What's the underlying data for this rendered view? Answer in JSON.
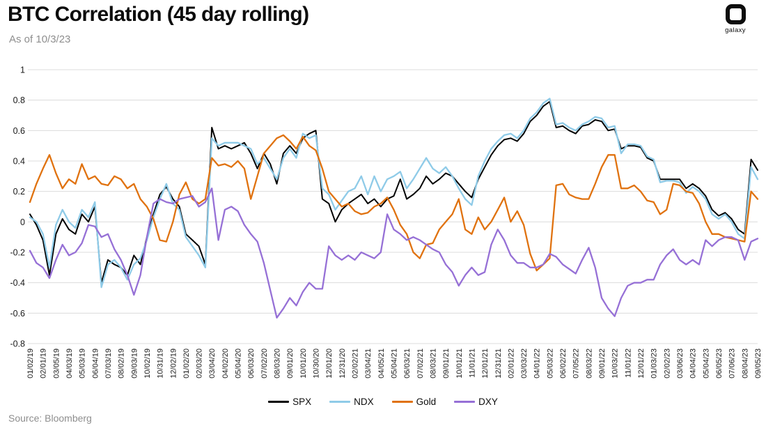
{
  "header": {
    "title": "BTC Correlation (45 day rolling)",
    "subtitle": "As of 10/3/23",
    "logo_text": "galaxy"
  },
  "footer": {
    "source": "Source: Bloomberg"
  },
  "legend": {
    "items": [
      "SPX",
      "NDX",
      "Gold",
      "DXY"
    ]
  },
  "chart_data": {
    "type": "line",
    "title": "BTC Correlation (45 day rolling)",
    "as_of": "10/3/23",
    "ylim": [
      -0.8,
      1
    ],
    "y_ticks": [
      1,
      0.8,
      0.6,
      0.4,
      0.2,
      0,
      -0.2,
      -0.4,
      -0.6,
      -0.8
    ],
    "grid": "horizontal",
    "legend_position": "bottom",
    "points_per_interval": 2,
    "x_tick_labels": [
      "01/02/19",
      "02/01/19",
      "03/05/19",
      "04/03/19",
      "05/03/19",
      "06/04/19",
      "07/03/19",
      "08/02/19",
      "09/03/19",
      "10/02/19",
      "10/31/19",
      "12/02/19",
      "01/02/20",
      "02/03/20",
      "03/04/20",
      "04/02/20",
      "05/04/20",
      "06/03/20",
      "07/02/20",
      "08/03/20",
      "09/01/20",
      "10/01/20",
      "10/30/20",
      "12/01/20",
      "12/31/20",
      "02/02/21",
      "03/04/21",
      "04/05/21",
      "05/04/21",
      "06/03/21",
      "07/02/21",
      "08/03/21",
      "09/01/21",
      "10/01/21",
      "11/01/21",
      "12/01/21",
      "12/31/21",
      "02/01/22",
      "03/03/22",
      "04/01/22",
      "05/03/22",
      "06/02/22",
      "07/05/22",
      "08/03/22",
      "09/01/22",
      "10/03/22",
      "11/01/22",
      "12/01/22",
      "01/03/23",
      "02/02/23",
      "03/06/23",
      "04/04/23",
      "05/04/23",
      "06/05/23",
      "07/06/23",
      "08/04/23",
      "09/05/23"
    ],
    "series": [
      {
        "name": "SPX",
        "color": "#000000",
        "values": [
          0.05,
          -0.02,
          -0.12,
          -0.35,
          -0.08,
          0.02,
          -0.05,
          -0.08,
          0.05,
          0.0,
          0.1,
          -0.4,
          -0.25,
          -0.28,
          -0.3,
          -0.35,
          -0.22,
          -0.28,
          -0.1,
          0.05,
          0.18,
          0.23,
          0.15,
          0.1,
          -0.08,
          -0.12,
          -0.16,
          -0.28,
          0.62,
          0.48,
          0.5,
          0.48,
          0.5,
          0.52,
          0.45,
          0.35,
          0.45,
          0.38,
          0.25,
          0.45,
          0.5,
          0.45,
          0.55,
          0.58,
          0.6,
          0.15,
          0.12,
          0.0,
          0.08,
          0.12,
          0.15,
          0.18,
          0.12,
          0.15,
          0.1,
          0.15,
          0.17,
          0.28,
          0.15,
          0.18,
          0.22,
          0.3,
          0.25,
          0.28,
          0.32,
          0.3,
          0.25,
          0.2,
          0.16,
          0.28,
          0.36,
          0.44,
          0.5,
          0.54,
          0.55,
          0.53,
          0.58,
          0.66,
          0.7,
          0.76,
          0.79,
          0.62,
          0.63,
          0.6,
          0.58,
          0.63,
          0.64,
          0.67,
          0.66,
          0.6,
          0.61,
          0.48,
          0.5,
          0.5,
          0.49,
          0.42,
          0.4,
          0.28,
          0.28,
          0.28,
          0.28,
          0.22,
          0.25,
          0.22,
          0.17,
          0.08,
          0.04,
          0.06,
          0.02,
          -0.05,
          -0.08,
          0.41,
          0.34
        ]
      },
      {
        "name": "NDX",
        "color": "#8fcbe8",
        "values": [
          0.03,
          0.0,
          -0.08,
          -0.3,
          -0.02,
          0.08,
          0.0,
          -0.04,
          0.08,
          0.03,
          0.13,
          -0.43,
          -0.28,
          -0.25,
          -0.3,
          -0.38,
          -0.28,
          -0.24,
          -0.12,
          0.03,
          0.15,
          0.25,
          0.12,
          0.08,
          -0.1,
          -0.16,
          -0.22,
          -0.3,
          0.55,
          0.5,
          0.52,
          0.52,
          0.52,
          0.5,
          0.48,
          0.38,
          0.42,
          0.35,
          0.28,
          0.42,
          0.48,
          0.42,
          0.58,
          0.55,
          0.57,
          0.22,
          0.18,
          0.08,
          0.14,
          0.2,
          0.22,
          0.3,
          0.18,
          0.3,
          0.2,
          0.28,
          0.3,
          0.33,
          0.22,
          0.28,
          0.35,
          0.42,
          0.35,
          0.32,
          0.36,
          0.3,
          0.22,
          0.15,
          0.11,
          0.3,
          0.4,
          0.48,
          0.53,
          0.57,
          0.58,
          0.55,
          0.6,
          0.68,
          0.72,
          0.78,
          0.81,
          0.64,
          0.65,
          0.62,
          0.6,
          0.64,
          0.66,
          0.69,
          0.68,
          0.62,
          0.63,
          0.45,
          0.51,
          0.51,
          0.5,
          0.43,
          0.41,
          0.26,
          0.27,
          0.27,
          0.26,
          0.19,
          0.23,
          0.2,
          0.15,
          0.05,
          0.02,
          0.05,
          0.0,
          -0.08,
          -0.11,
          0.36,
          0.28
        ]
      },
      {
        "name": "Gold",
        "color": "#e0720f",
        "values": [
          0.13,
          0.25,
          0.35,
          0.44,
          0.32,
          0.22,
          0.28,
          0.25,
          0.38,
          0.28,
          0.3,
          0.25,
          0.24,
          0.3,
          0.28,
          0.22,
          0.25,
          0.15,
          0.1,
          0.02,
          -0.12,
          -0.13,
          0.0,
          0.18,
          0.26,
          0.15,
          0.12,
          0.15,
          0.42,
          0.37,
          0.38,
          0.36,
          0.4,
          0.35,
          0.15,
          0.3,
          0.45,
          0.5,
          0.55,
          0.57,
          0.53,
          0.48,
          0.56,
          0.5,
          0.47,
          0.35,
          0.2,
          0.15,
          0.1,
          0.12,
          0.07,
          0.05,
          0.06,
          0.1,
          0.12,
          0.16,
          0.08,
          -0.02,
          -0.08,
          -0.2,
          -0.24,
          -0.15,
          -0.14,
          -0.05,
          0.0,
          0.05,
          0.15,
          -0.05,
          -0.08,
          0.03,
          -0.05,
          0.0,
          0.08,
          0.16,
          0.0,
          0.07,
          -0.02,
          -0.21,
          -0.32,
          -0.28,
          -0.24,
          0.24,
          0.25,
          0.18,
          0.16,
          0.15,
          0.15,
          0.25,
          0.36,
          0.44,
          0.44,
          0.22,
          0.22,
          0.24,
          0.2,
          0.14,
          0.13,
          0.05,
          0.08,
          0.25,
          0.24,
          0.2,
          0.19,
          0.12,
          0.0,
          -0.08,
          -0.08,
          -0.1,
          -0.11,
          -0.12,
          -0.13,
          0.2,
          0.15
        ]
      },
      {
        "name": "DXY",
        "color": "#9670d6",
        "values": [
          -0.19,
          -0.27,
          -0.3,
          -0.37,
          -0.25,
          -0.15,
          -0.22,
          -0.2,
          -0.14,
          -0.02,
          -0.03,
          -0.1,
          -0.08,
          -0.18,
          -0.25,
          -0.35,
          -0.48,
          -0.35,
          -0.1,
          0.12,
          0.15,
          0.13,
          0.12,
          0.15,
          0.16,
          0.17,
          0.1,
          0.13,
          0.22,
          -0.12,
          0.08,
          0.1,
          0.07,
          -0.02,
          -0.08,
          -0.13,
          -0.27,
          -0.45,
          -0.63,
          -0.57,
          -0.5,
          -0.55,
          -0.46,
          -0.4,
          -0.44,
          -0.44,
          -0.16,
          -0.22,
          -0.25,
          -0.22,
          -0.25,
          -0.2,
          -0.22,
          -0.24,
          -0.2,
          0.05,
          -0.05,
          -0.08,
          -0.12,
          -0.1,
          -0.12,
          -0.15,
          -0.18,
          -0.2,
          -0.28,
          -0.33,
          -0.42,
          -0.35,
          -0.3,
          -0.35,
          -0.33,
          -0.15,
          -0.05,
          -0.12,
          -0.22,
          -0.27,
          -0.27,
          -0.3,
          -0.3,
          -0.28,
          -0.21,
          -0.23,
          -0.28,
          -0.31,
          -0.34,
          -0.25,
          -0.17,
          -0.3,
          -0.5,
          -0.57,
          -0.62,
          -0.5,
          -0.42,
          -0.4,
          -0.4,
          -0.38,
          -0.38,
          -0.28,
          -0.22,
          -0.18,
          -0.25,
          -0.28,
          -0.25,
          -0.28,
          -0.12,
          -0.16,
          -0.12,
          -0.1,
          -0.1,
          -0.12,
          -0.25,
          -0.13,
          -0.11
        ]
      }
    ]
  }
}
